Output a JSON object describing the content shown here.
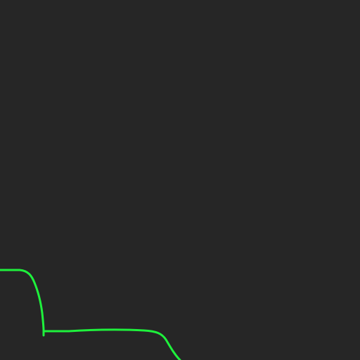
{
  "canvas": {
    "background": "#262626"
  },
  "stroke": {
    "color": "#1ef13c",
    "kind": "freehand-line"
  }
}
